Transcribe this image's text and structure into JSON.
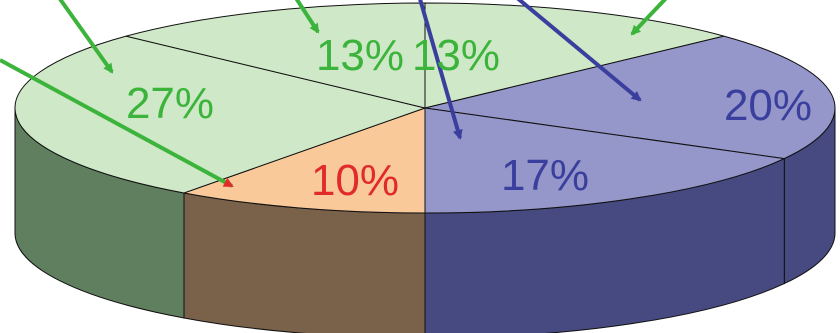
{
  "chart_data": {
    "type": "pie",
    "style": "3d",
    "title": "",
    "slices": [
      {
        "label": "13%",
        "value": 13,
        "top_color": "#cfe8c7",
        "side_color": "#5f7f5f",
        "label_color": "#3cb43c",
        "arrow_color": "#3cb43c"
      },
      {
        "label": "20%",
        "value": 20,
        "top_color": "#9596c9",
        "side_color": "#474a80",
        "label_color": "#3a3f9e",
        "arrow_color": "#3a3f9e"
      },
      {
        "label": "17%",
        "value": 17,
        "top_color": "#9596c9",
        "side_color": "#474a80",
        "label_color": "#3a3f9e",
        "arrow_color": "#3a3f9e"
      },
      {
        "label": "10%",
        "value": 10,
        "top_color": "#f9c99a",
        "side_color": "#7a614a",
        "label_color": "#e12b2b",
        "arrow_color": "#e12b2b"
      },
      {
        "label": "27%",
        "value": 27,
        "top_color": "#cfe8c7",
        "side_color": "#5f7f5f",
        "label_color": "#3cb43c",
        "arrow_color": "#3cb43c"
      },
      {
        "label": "13%",
        "value": 13,
        "top_color": "#cfe8c7",
        "side_color": "#5f7f5f",
        "label_color": "#3cb43c",
        "arrow_color": "#3cb43c"
      }
    ],
    "grid": false,
    "legend": "none"
  }
}
